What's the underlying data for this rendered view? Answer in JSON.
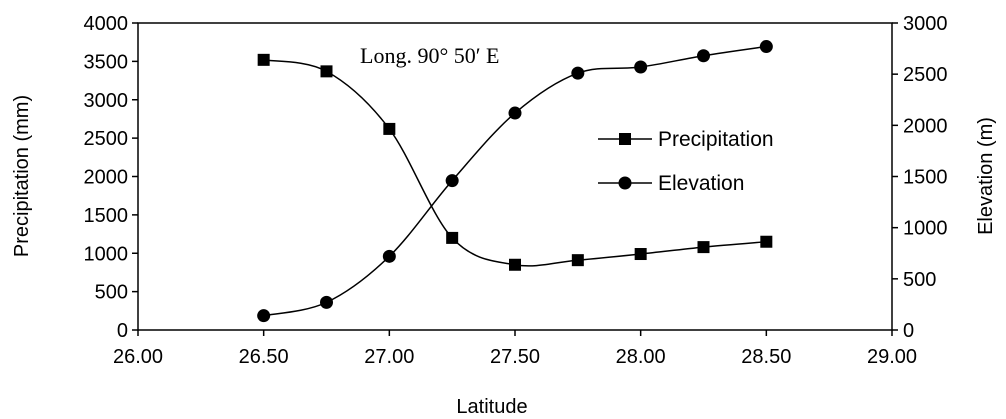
{
  "chart_data": {
    "type": "line",
    "annotation": "Long. 90° 50′ E",
    "xlabel": "Latitude",
    "ylabel_left": "Precipitation (mm)",
    "ylabel_right": "Elevation (m)",
    "xlim": [
      26.0,
      29.0
    ],
    "ylim_left": [
      0,
      4000
    ],
    "ylim_right": [
      0,
      3000
    ],
    "x_ticks": [
      "26.00",
      "26.50",
      "27.00",
      "27.50",
      "28.00",
      "28.50",
      "29.00"
    ],
    "y_ticks_left": [
      "0",
      "500",
      "1000",
      "1500",
      "2000",
      "2500",
      "3000",
      "3500",
      "4000"
    ],
    "y_ticks_right": [
      "0",
      "500",
      "1000",
      "1500",
      "2000",
      "2500",
      "3000"
    ],
    "grid": false,
    "legend_position": "right-center",
    "series": [
      {
        "name": "Precipitation",
        "axis": "left",
        "marker": "square",
        "color": "#000000",
        "x": [
          26.5,
          26.75,
          27.0,
          27.25,
          27.5,
          27.75,
          28.0,
          28.25,
          28.5
        ],
        "values": [
          3520,
          3370,
          2620,
          1200,
          850,
          910,
          990,
          1080,
          1150
        ]
      },
      {
        "name": "Elevation",
        "axis": "right",
        "marker": "circle",
        "color": "#000000",
        "x": [
          26.5,
          26.75,
          27.0,
          27.25,
          27.5,
          27.75,
          28.0,
          28.25,
          28.5
        ],
        "values": [
          140,
          270,
          720,
          1460,
          2120,
          2510,
          2570,
          2680,
          2770
        ]
      }
    ]
  }
}
